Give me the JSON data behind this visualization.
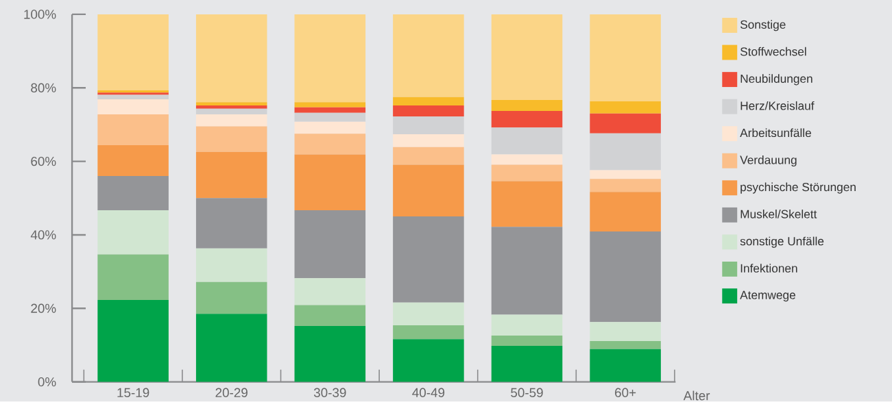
{
  "chart_data": {
    "type": "bar",
    "stacked": true,
    "xlabel": "Alter",
    "legend": "right",
    "grid": false,
    "categories": [
      "15-19",
      "20-29",
      "30-39",
      "40-49",
      "50-59",
      "60+"
    ],
    "ylim": [
      0,
      100
    ],
    "yticks": [
      {
        "value": 0,
        "label": "0%"
      },
      {
        "value": 20,
        "label": "20%"
      },
      {
        "value": 40,
        "label": "40%"
      },
      {
        "value": 60,
        "label": "60%"
      },
      {
        "value": 80,
        "label": "80%"
      },
      {
        "value": 100,
        "label": "100%"
      }
    ],
    "series": [
      {
        "name": "Atemwege",
        "color": "#00a44a",
        "values": [
          22.3,
          18.5,
          15.2,
          11.6,
          9.8,
          8.9
        ]
      },
      {
        "name": "Infektionen",
        "color": "#85c085",
        "values": [
          12.4,
          8.7,
          5.7,
          3.8,
          2.8,
          2.2
        ]
      },
      {
        "name": "sonstige Unfälle",
        "color": "#d1e6d1",
        "values": [
          12.0,
          9.1,
          7.3,
          6.2,
          5.7,
          5.2
        ]
      },
      {
        "name": "Muskel/Skelett",
        "color": "#949598",
        "values": [
          9.3,
          13.7,
          18.5,
          23.4,
          23.9,
          24.6
        ]
      },
      {
        "name": "psychische Störungen",
        "color": "#f69a4a",
        "values": [
          8.4,
          12.6,
          15.2,
          14.1,
          12.4,
          10.8
        ]
      },
      {
        "name": "Verdauung",
        "color": "#fbbf8a",
        "values": [
          8.4,
          6.9,
          5.6,
          4.8,
          4.5,
          3.5
        ]
      },
      {
        "name": "Arbeitsunfälle",
        "color": "#fee6d3",
        "values": [
          4.1,
          3.3,
          3.3,
          3.5,
          2.8,
          2.4
        ]
      },
      {
        "name": "Herz/Kreislauf",
        "color": "#d1d2d4",
        "values": [
          1.2,
          1.5,
          2.4,
          4.8,
          7.3,
          10.0
        ]
      },
      {
        "name": "Neubildungen",
        "color": "#ef4d3a",
        "values": [
          0.6,
          0.9,
          1.5,
          3.0,
          4.5,
          5.4
        ]
      },
      {
        "name": "Stoffwechsel",
        "color": "#f8bb2a",
        "values": [
          0.6,
          0.9,
          1.4,
          2.3,
          3.0,
          3.3
        ]
      },
      {
        "name": "Sonstige",
        "color": "#fbd587",
        "values": [
          20.7,
          23.9,
          23.9,
          22.5,
          23.3,
          23.7
        ]
      }
    ]
  }
}
